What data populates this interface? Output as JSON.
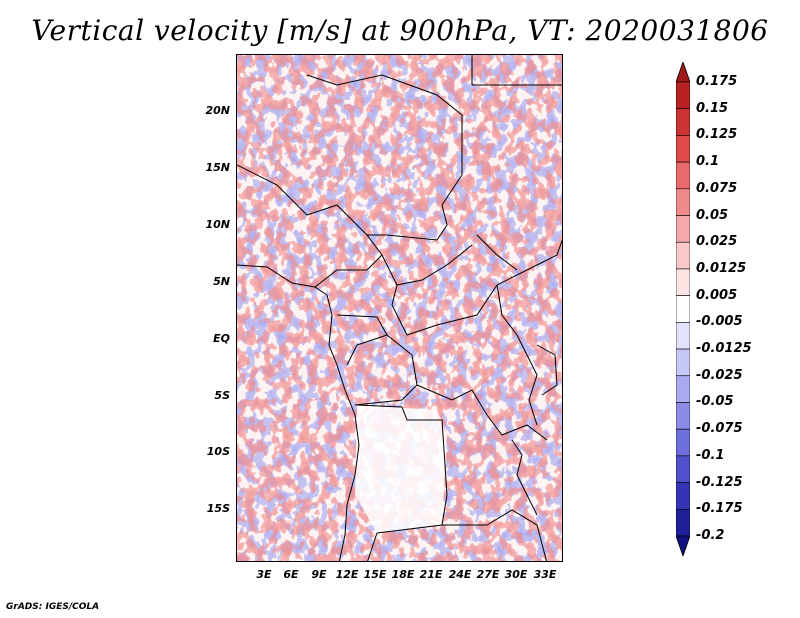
{
  "title": "Vertical velocity [m/s] at 900hPa, VT: 2020031806",
  "footer": "GrADS: IGES/COLA",
  "map": {
    "lat_labels": [
      "20N",
      "15N",
      "10N",
      "5N",
      "EQ",
      "5S",
      "10S",
      "15S"
    ],
    "lon_labels": [
      "3E",
      "6E",
      "9E",
      "12E",
      "15E",
      "18E",
      "21E",
      "24E",
      "27E",
      "30E",
      "33E"
    ]
  },
  "colorbar": {
    "labels": [
      "0.175",
      "0.15",
      "0.125",
      "0.1",
      "0.075",
      "0.05",
      "0.025",
      "0.0125",
      "0.005",
      "-0.005",
      "-0.0125",
      "-0.025",
      "-0.05",
      "-0.075",
      "-0.1",
      "-0.125",
      "-0.175",
      "-0.2"
    ],
    "colors": [
      "#a01818",
      "#b82222",
      "#cc3333",
      "#de4a4a",
      "#e86a6a",
      "#f08a8a",
      "#f5a8a8",
      "#f9c8c8",
      "#fce4e4",
      "#ffffff",
      "#e2e2fb",
      "#c8c8f6",
      "#aaaaf0",
      "#8c8ce6",
      "#6e6edc",
      "#5050cc",
      "#3434b4",
      "#20209a",
      "#101080"
    ]
  }
}
